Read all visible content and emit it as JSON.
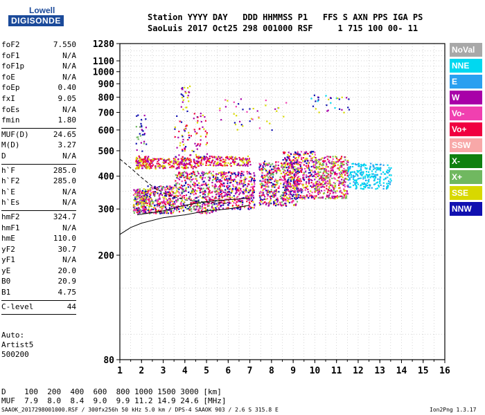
{
  "logo": {
    "line1": "Lowell",
    "line2": "DIGISONDE"
  },
  "header": {
    "row1": "Station YYYY DAY   DDD HHMMSS P1   FFS S AXN PPS IGA PS",
    "row2": "SaoLuis 2017 Oct25 298 001000 RSF     1 715 100 00- 11"
  },
  "params": [
    {
      "label": "foF2",
      "value": "7.550"
    },
    {
      "label": "foF1",
      "value": "N/A"
    },
    {
      "label": "foF1p",
      "value": "N/A"
    },
    {
      "label": "foE",
      "value": "N/A"
    },
    {
      "label": "foEp",
      "value": "0.40"
    },
    {
      "label": "fxI",
      "value": "9.05"
    },
    {
      "label": "foEs",
      "value": "N/A"
    },
    {
      "label": "fmin",
      "value": "1.80"
    },
    {
      "sep": true
    },
    {
      "label": "MUF(D)",
      "value": "24.65"
    },
    {
      "label": "M(D)",
      "value": "3.27"
    },
    {
      "label": "D",
      "value": "N/A"
    },
    {
      "sep": true
    },
    {
      "label": "h`F",
      "value": "285.0"
    },
    {
      "label": "h`F2",
      "value": "285.0"
    },
    {
      "label": "h`E",
      "value": "N/A"
    },
    {
      "label": "h`Es",
      "value": "N/A"
    },
    {
      "sep": true
    },
    {
      "label": "hmF2",
      "value": "324.7"
    },
    {
      "label": "hmF1",
      "value": "N/A"
    },
    {
      "label": "hmE",
      "value": "110.0"
    },
    {
      "label": "yF2",
      "value": "30.7"
    },
    {
      "label": "yF1",
      "value": "N/A"
    },
    {
      "label": "yE",
      "value": "20.0"
    },
    {
      "label": "B0",
      "value": "20.9"
    },
    {
      "label": "B1",
      "value": "4.75"
    },
    {
      "sep": true
    },
    {
      "label": "C-level",
      "value": "44"
    },
    {
      "sep": true
    }
  ],
  "auto": [
    "Auto:",
    "Artist5",
    "500200"
  ],
  "legend": [
    {
      "label": "NoVal",
      "color": "#a8a8a8"
    },
    {
      "label": "NNE",
      "color": "#00d8f0"
    },
    {
      "label": "E",
      "color": "#2aa0f0"
    },
    {
      "label": "W",
      "color": "#a800a8"
    },
    {
      "label": "Vo-",
      "color": "#f040b0"
    },
    {
      "label": "Vo+",
      "color": "#f00040"
    },
    {
      "label": "SSW",
      "color": "#f8a8a8"
    },
    {
      "label": "X-",
      "color": "#108010"
    },
    {
      "label": "X+",
      "color": "#70b860"
    },
    {
      "label": "SSE",
      "color": "#d8d800"
    },
    {
      "label": "NNW",
      "color": "#1010b0"
    }
  ],
  "bottom": {
    "d_row": "D    100  200  400  600  800 1000 1500 3000 [km]",
    "muf_row": "MUF  7.9  8.0  8.4  9.0  9.9 11.2 14.9 24.6 [MHz]"
  },
  "footer": {
    "left": "SAAOK_2017298001000.RSF / 300fx256h 50 kHz 5.0 km / DPS-4 SAAOK 903 / 2.6 S 315.8 E",
    "right": "Ion2Png 1.3.17"
  },
  "chart_data": {
    "type": "scatter",
    "title": "",
    "xlabel": "",
    "ylabel": "",
    "xlim": [
      1,
      16
    ],
    "ylim": [
      80,
      1280
    ],
    "y_scale": "log",
    "x_ticks": [
      1,
      2,
      3,
      4,
      5,
      6,
      7,
      8,
      9,
      10,
      11,
      12,
      13,
      14,
      15,
      16
    ],
    "y_ticks": [
      80,
      200,
      300,
      400,
      500,
      600,
      700,
      800,
      900,
      1000,
      1100,
      1280
    ],
    "grid": true,
    "clusters": [
      {
        "x": [
          1.6,
          2.2
        ],
        "y": [
          290,
          360
        ],
        "n": 220,
        "colors": [
          "#f00040",
          "#f040b0",
          "#d8d800",
          "#a800a8",
          "#1010b0",
          "#70b860"
        ]
      },
      {
        "x": [
          1.7,
          2.3
        ],
        "y": [
          430,
          480
        ],
        "n": 90,
        "colors": [
          "#d8d800",
          "#a800a8",
          "#f00040"
        ]
      },
      {
        "x": [
          1.7,
          2.2
        ],
        "y": [
          500,
          700
        ],
        "n": 30,
        "colors": [
          "#a800a8",
          "#1010b0",
          "#70b860"
        ]
      },
      {
        "x": [
          2.2,
          3.5
        ],
        "y": [
          290,
          370
        ],
        "n": 300,
        "colors": [
          "#f00040",
          "#f040b0",
          "#d8d800",
          "#a800a8",
          "#1010b0",
          "#70b860"
        ]
      },
      {
        "x": [
          2.2,
          4.5
        ],
        "y": [
          430,
          470
        ],
        "n": 200,
        "colors": [
          "#d8d800",
          "#f00040",
          "#a800a8"
        ]
      },
      {
        "x": [
          3.5,
          5.5
        ],
        "y": [
          290,
          420
        ],
        "n": 450,
        "colors": [
          "#f00040",
          "#f040b0",
          "#d8d800",
          "#a800a8",
          "#1010b0",
          "#70b860"
        ]
      },
      {
        "x": [
          3.5,
          5.0
        ],
        "y": [
          470,
          700
        ],
        "n": 90,
        "colors": [
          "#a800a8",
          "#1010b0",
          "#d8d800",
          "#f00040"
        ]
      },
      {
        "x": [
          3.8,
          4.2
        ],
        "y": [
          700,
          900
        ],
        "n": 25,
        "colors": [
          "#a800a8",
          "#1010b0",
          "#d8d800"
        ]
      },
      {
        "x": [
          4.5,
          7.0
        ],
        "y": [
          440,
          480
        ],
        "n": 180,
        "colors": [
          "#d8d800",
          "#f00040",
          "#a800a8"
        ]
      },
      {
        "x": [
          5.5,
          7.2
        ],
        "y": [
          300,
          420
        ],
        "n": 400,
        "colors": [
          "#f00040",
          "#f040b0",
          "#d8d800",
          "#a800a8",
          "#1010b0"
        ]
      },
      {
        "x": [
          7.4,
          9.2
        ],
        "y": [
          310,
          460
        ],
        "n": 450,
        "colors": [
          "#f00040",
          "#f040b0",
          "#a800a8",
          "#1010b0",
          "#d8d800",
          "#70b860"
        ]
      },
      {
        "x": [
          8.5,
          10.0
        ],
        "y": [
          330,
          500
        ],
        "n": 400,
        "colors": [
          "#a800a8",
          "#f00040",
          "#f040b0",
          "#1010b0",
          "#d8d800"
        ]
      },
      {
        "x": [
          10.0,
          11.5
        ],
        "y": [
          330,
          480
        ],
        "n": 400,
        "colors": [
          "#d8d800",
          "#f040b0",
          "#f00040",
          "#70b860",
          "#a800a8"
        ]
      },
      {
        "x": [
          11.5,
          13.5
        ],
        "y": [
          360,
          450
        ],
        "n": 250,
        "colors": [
          "#00d8f0",
          "#2aa0f0",
          "#00d8f0"
        ]
      },
      {
        "x": [
          9.5,
          11.6
        ],
        "y": [
          700,
          820
        ],
        "n": 30,
        "colors": [
          "#00d8f0",
          "#a800a8",
          "#1010b0",
          "#d8d800"
        ]
      },
      {
        "x": [
          5.5,
          9.0
        ],
        "y": [
          600,
          800
        ],
        "n": 40,
        "colors": [
          "#d8d800",
          "#a800a8",
          "#f040b0",
          "#1010b0"
        ]
      }
    ],
    "curves": [
      {
        "name": "",
        "style": "solid",
        "x": [
          1.0,
          1.5,
          2.0,
          3.0,
          4.0,
          5.0,
          6.0,
          7.0
        ],
        "y": [
          240,
          255,
          265,
          278,
          285,
          295,
          300,
          310
        ]
      },
      {
        "name": "",
        "style": "solid",
        "x": [
          1.8,
          3.0,
          4.0,
          5.0,
          6.0,
          7.0
        ],
        "y": [
          285,
          295,
          310,
          320,
          325,
          330
        ]
      },
      {
        "name": "",
        "style": "dashed",
        "x": [
          1.0,
          1.5,
          2.0,
          2.6,
          3.2,
          4.0,
          5.0,
          6.0
        ],
        "y": [
          465,
          430,
          395,
          360,
          340,
          325,
          318,
          315
        ]
      }
    ]
  }
}
